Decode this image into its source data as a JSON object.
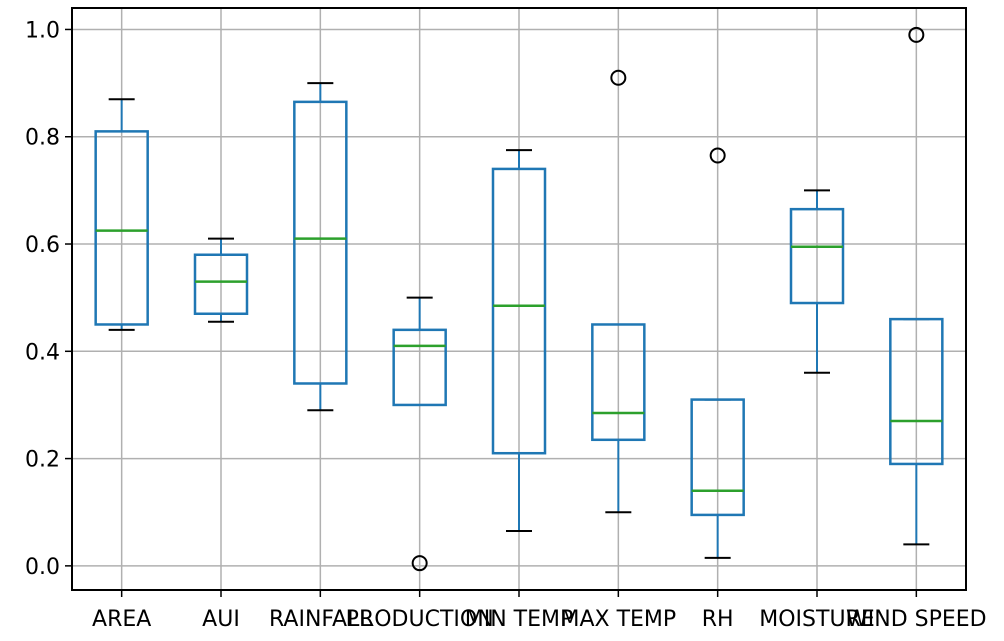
{
  "chart_data": {
    "type": "box",
    "title": "",
    "xlabel": "",
    "ylabel": "",
    "ylim": [
      -0.045,
      1.04
    ],
    "yticks": [
      0.0,
      0.2,
      0.4,
      0.6,
      0.8,
      1.0
    ],
    "ytick_labels": [
      "0.0",
      "0.2",
      "0.4",
      "0.6",
      "0.8",
      "1.0"
    ],
    "grid": true,
    "colors": {
      "box": "#1f77b4",
      "median": "#2ca02c",
      "whisker": "#000000",
      "grid": "#b0b0b0",
      "flier": "#000000"
    },
    "categories": [
      "AREA",
      "AUI",
      "RAINFALL",
      "PRODUCTION",
      "MIN TEMP",
      "MAX TEMP",
      "RH",
      "MOISTURE",
      "WIND SPEED"
    ],
    "boxes": [
      {
        "name": "AREA",
        "whisker_low": 0.44,
        "q1": 0.45,
        "median": 0.625,
        "q3": 0.81,
        "whisker_high": 0.87,
        "outliers": []
      },
      {
        "name": "AUI",
        "whisker_low": 0.455,
        "q1": 0.47,
        "median": 0.53,
        "q3": 0.58,
        "whisker_high": 0.61,
        "outliers": []
      },
      {
        "name": "RAINFALL",
        "whisker_low": 0.29,
        "q1": 0.34,
        "median": 0.61,
        "q3": 0.865,
        "whisker_high": 0.9,
        "outliers": []
      },
      {
        "name": "PRODUCTION",
        "whisker_low": 0.3,
        "q1": 0.3,
        "median": 0.41,
        "q3": 0.44,
        "whisker_high": 0.5,
        "outliers": [
          0.005
        ]
      },
      {
        "name": "MIN TEMP",
        "whisker_low": 0.065,
        "q1": 0.21,
        "median": 0.485,
        "q3": 0.74,
        "whisker_high": 0.775,
        "outliers": []
      },
      {
        "name": "MAX TEMP",
        "whisker_low": 0.1,
        "q1": 0.235,
        "median": 0.285,
        "q3": 0.45,
        "whisker_high": 0.45,
        "outliers": [
          0.91
        ]
      },
      {
        "name": "RH",
        "whisker_low": 0.015,
        "q1": 0.095,
        "median": 0.14,
        "q3": 0.31,
        "whisker_high": 0.31,
        "outliers": [
          0.765
        ]
      },
      {
        "name": "MOISTURE",
        "whisker_low": 0.36,
        "q1": 0.49,
        "median": 0.595,
        "q3": 0.665,
        "whisker_high": 0.7,
        "outliers": []
      },
      {
        "name": "WIND SPEED",
        "whisker_low": 0.04,
        "q1": 0.19,
        "median": 0.27,
        "q3": 0.46,
        "whisker_high": 0.46,
        "outliers": [
          0.99
        ]
      }
    ]
  }
}
